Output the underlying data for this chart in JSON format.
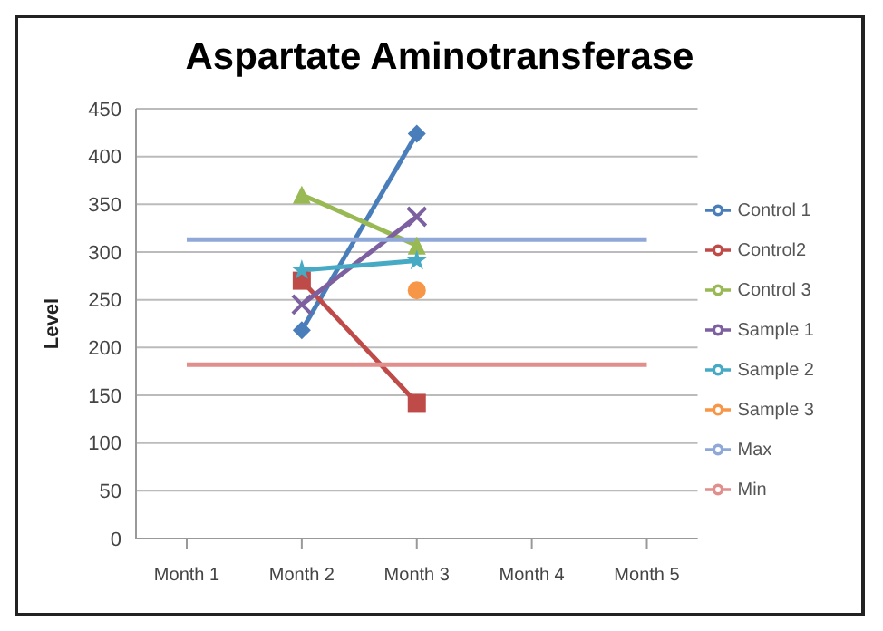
{
  "chart_data": {
    "type": "line",
    "title": "Aspartate Aminotransferase",
    "ylabel": "Level",
    "categories": [
      "Month 1",
      "Month 2",
      "Month 3",
      "Month 4",
      "Month 5"
    ],
    "series": [
      {
        "name": "Control 1",
        "color": "#4a7ebb",
        "marker": "diamond",
        "values": [
          null,
          218,
          424,
          null,
          null
        ]
      },
      {
        "name": "Control2",
        "color": "#be4b48",
        "marker": "square",
        "values": [
          null,
          270,
          142,
          null,
          null
        ]
      },
      {
        "name": "Control 3",
        "color": "#98b954",
        "marker": "triangle",
        "values": [
          null,
          360,
          307,
          null,
          null
        ]
      },
      {
        "name": "Sample 1",
        "color": "#7d60a0",
        "marker": "cross",
        "values": [
          null,
          245,
          337,
          null,
          null
        ]
      },
      {
        "name": "Sample 2",
        "color": "#46aac5",
        "marker": "star",
        "values": [
          null,
          281,
          291,
          null,
          null
        ]
      },
      {
        "name": "Sample 3",
        "color": "#f79646",
        "marker": "circle",
        "values": [
          null,
          null,
          260,
          null,
          null
        ]
      },
      {
        "name": "Max",
        "color": "#8fa8d8",
        "marker": "none",
        "values": [
          313,
          313,
          313,
          313,
          313
        ]
      },
      {
        "name": "Min",
        "color": "#e08f8c",
        "marker": "none",
        "values": [
          182,
          182,
          182,
          182,
          182
        ]
      }
    ],
    "ylim": [
      0,
      450
    ],
    "yticks": [
      0,
      50,
      100,
      150,
      200,
      250,
      300,
      350,
      400,
      450
    ],
    "grid": "y",
    "legend": "right"
  }
}
